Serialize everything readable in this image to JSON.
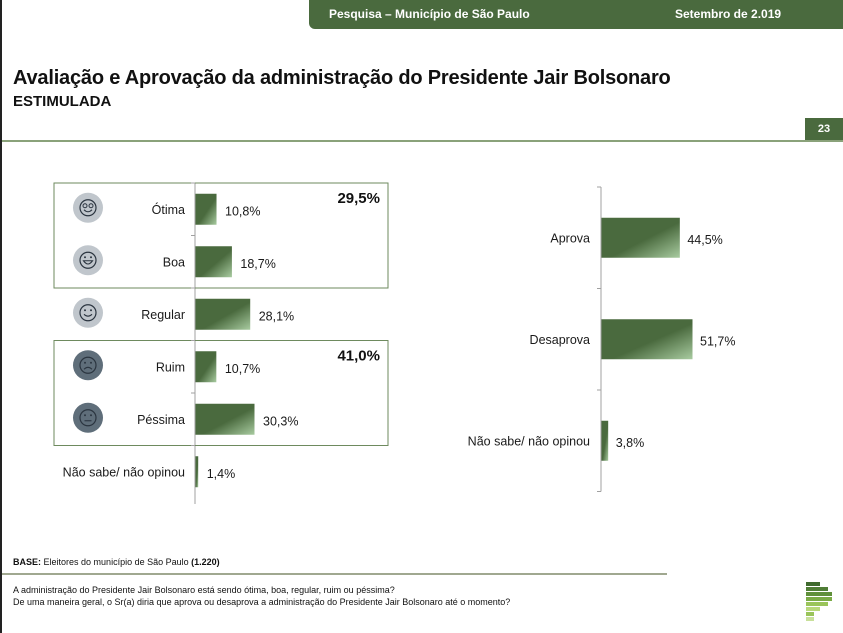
{
  "header": {
    "banner_left": "Pesquisa – Município de São Paulo",
    "banner_right": "Setembro de 2.019",
    "title": "Avaliação e Aprovação da administração do Presidente Jair Bolsonaro",
    "subtitle": "ESTIMULADA",
    "page_number": "23"
  },
  "colors": {
    "brand": "#4a6a3e",
    "bar": "#4a6a3e",
    "bar_highlight": "#a8cba0",
    "icon_positive": "#c0c6cc",
    "icon_negative": "#5f6e7a",
    "group_box": "#6e8a5e"
  },
  "chart_data": [
    {
      "type": "bar",
      "orientation": "horizontal",
      "title": "Avaliação",
      "categories": [
        "Ótima",
        "Boa",
        "Regular",
        "Ruim",
        "Péssima",
        "Não sabe/ não opinou"
      ],
      "values": [
        10.8,
        18.7,
        28.1,
        10.7,
        30.3,
        1.4
      ],
      "value_labels": [
        "10,8%",
        "18,7%",
        "28,1%",
        "10,7%",
        "30,3%",
        "1,4%"
      ],
      "icons": [
        "smile-wide-eyes-icon",
        "grin-icon",
        "smile-icon",
        "frown-icon",
        "neutral-face-icon",
        ""
      ],
      "groups": [
        {
          "name": "positive",
          "members": [
            "Ótima",
            "Boa"
          ],
          "total_label": "29,5%",
          "total": 29.5
        },
        {
          "name": "negative",
          "members": [
            "Ruim",
            "Péssima"
          ],
          "total_label": "41,0%",
          "total": 41.0
        }
      ],
      "xlim": [
        0,
        100
      ],
      "unit": "%"
    },
    {
      "type": "bar",
      "orientation": "horizontal",
      "title": "Aprovação",
      "categories": [
        "Aprova",
        "Desaprova",
        "Não sabe/ não opinou"
      ],
      "values": [
        44.5,
        51.7,
        3.8
      ],
      "value_labels": [
        "44,5%",
        "51,7%",
        "3,8%"
      ],
      "xlim": [
        0,
        100
      ],
      "unit": "%"
    }
  ],
  "footer": {
    "base_label": "BASE:",
    "base_text": "Eleitores do município de São Paulo",
    "base_count": "(1.220)",
    "question_1": "A administração do Presidente Jair Bolsonaro está sendo ótima, boa, regular, ruim ou péssima?",
    "question_2": "De uma maneira geral, o Sr(a) diria que aprova ou desaprova a administração do Presidente Jair Bolsonaro até o momento?"
  }
}
